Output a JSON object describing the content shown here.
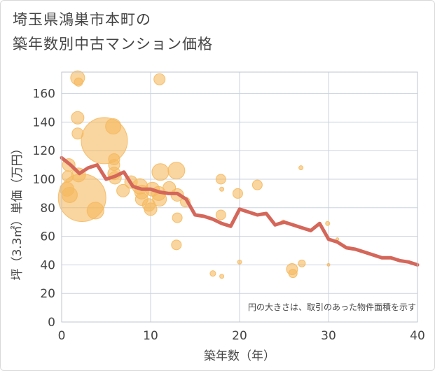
{
  "title_line1": "埼玉県鴻巣市本町の",
  "title_line2": "築年数別中古マンション価格",
  "chart_data": {
    "type": "scatter",
    "xlabel": "築年数（年）",
    "ylabel": "坪（3.3㎡）単価（万円）",
    "xlim": [
      0,
      40
    ],
    "ylim": [
      0,
      175
    ],
    "xticks": [
      0,
      10,
      20,
      30,
      40
    ],
    "yticks": [
      0,
      20,
      40,
      60,
      80,
      100,
      120,
      140,
      160
    ],
    "grid": true,
    "annotation": "円の大きさは、取引のあった物件面積を示す",
    "colors": {
      "bubble": "#f5b95f",
      "line": "#d4675a",
      "grid": "#c9d3df"
    },
    "bubbles": [
      {
        "x": 1.8,
        "y": 171,
        "s": 10
      },
      {
        "x": 1.9,
        "y": 168,
        "s": 6
      },
      {
        "x": 1.8,
        "y": 143,
        "s": 9
      },
      {
        "x": 1.8,
        "y": 132,
        "s": 8
      },
      {
        "x": 0.8,
        "y": 110,
        "s": 9
      },
      {
        "x": 0.7,
        "y": 102,
        "s": 8
      },
      {
        "x": 1.9,
        "y": 103,
        "s": 10
      },
      {
        "x": 0.6,
        "y": 93,
        "s": 10
      },
      {
        "x": 0.9,
        "y": 89,
        "s": 11
      },
      {
        "x": 2.3,
        "y": 87,
        "s": 34
      },
      {
        "x": 3.8,
        "y": 78,
        "s": 12
      },
      {
        "x": 4.8,
        "y": 127,
        "s": 33
      },
      {
        "x": 5.8,
        "y": 137,
        "s": 11
      },
      {
        "x": 5.9,
        "y": 114,
        "s": 8
      },
      {
        "x": 5.9,
        "y": 110,
        "s": 8
      },
      {
        "x": 5.9,
        "y": 104,
        "s": 9
      },
      {
        "x": 6.0,
        "y": 101,
        "s": 9
      },
      {
        "x": 6.9,
        "y": 92,
        "s": 9
      },
      {
        "x": 7.8,
        "y": 98,
        "s": 9
      },
      {
        "x": 8.8,
        "y": 95,
        "s": 11
      },
      {
        "x": 9.0,
        "y": 91,
        "s": 10
      },
      {
        "x": 9.0,
        "y": 86,
        "s": 9
      },
      {
        "x": 9.8,
        "y": 82,
        "s": 9
      },
      {
        "x": 10.0,
        "y": 79,
        "s": 9
      },
      {
        "x": 10.2,
        "y": 93,
        "s": 10
      },
      {
        "x": 10.9,
        "y": 90,
        "s": 10
      },
      {
        "x": 11.0,
        "y": 86,
        "s": 10
      },
      {
        "x": 11.1,
        "y": 105,
        "s": 12
      },
      {
        "x": 11.0,
        "y": 170,
        "s": 8
      },
      {
        "x": 12.1,
        "y": 94,
        "s": 9
      },
      {
        "x": 12.9,
        "y": 106,
        "s": 12
      },
      {
        "x": 13.0,
        "y": 89,
        "s": 9
      },
      {
        "x": 13.0,
        "y": 73,
        "s": 7
      },
      {
        "x": 12.9,
        "y": 54,
        "s": 7
      },
      {
        "x": 13.9,
        "y": 84,
        "s": 7
      },
      {
        "x": 17.0,
        "y": 34,
        "s": 4
      },
      {
        "x": 17.9,
        "y": 100,
        "s": 7
      },
      {
        "x": 18.0,
        "y": 93,
        "s": 3
      },
      {
        "x": 17.9,
        "y": 75,
        "s": 7
      },
      {
        "x": 18.0,
        "y": 32,
        "s": 3
      },
      {
        "x": 19.8,
        "y": 90,
        "s": 7
      },
      {
        "x": 20.0,
        "y": 42,
        "s": 3
      },
      {
        "x": 22.0,
        "y": 96,
        "s": 7
      },
      {
        "x": 24.9,
        "y": 70,
        "s": 3
      },
      {
        "x": 25.9,
        "y": 37,
        "s": 8
      },
      {
        "x": 26.0,
        "y": 34,
        "s": 6
      },
      {
        "x": 26.9,
        "y": 108,
        "s": 3
      },
      {
        "x": 27.0,
        "y": 41,
        "s": 5
      },
      {
        "x": 29.9,
        "y": 69,
        "s": 3
      },
      {
        "x": 30.0,
        "y": 40,
        "s": 2
      },
      {
        "x": 31.0,
        "y": 58,
        "s": 2
      }
    ],
    "trend": [
      [
        0,
        115
      ],
      [
        1,
        110
      ],
      [
        2,
        104
      ],
      [
        3,
        108
      ],
      [
        4,
        110
      ],
      [
        5,
        100
      ],
      [
        6,
        102
      ],
      [
        7,
        105
      ],
      [
        8,
        95
      ],
      [
        9,
        93
      ],
      [
        10,
        93
      ],
      [
        11,
        91
      ],
      [
        12,
        90
      ],
      [
        13,
        90
      ],
      [
        14,
        86
      ],
      [
        15,
        75
      ],
      [
        16,
        74
      ],
      [
        17,
        72
      ],
      [
        18,
        69
      ],
      [
        19,
        67
      ],
      [
        20,
        79
      ],
      [
        21,
        77
      ],
      [
        22,
        75
      ],
      [
        23,
        76
      ],
      [
        24,
        68
      ],
      [
        25,
        70
      ],
      [
        26,
        68
      ],
      [
        27,
        66
      ],
      [
        28,
        64
      ],
      [
        29,
        69
      ],
      [
        30,
        58
      ],
      [
        31,
        56
      ],
      [
        32,
        52
      ],
      [
        33,
        51
      ],
      [
        34,
        49
      ],
      [
        35,
        47
      ],
      [
        36,
        45
      ],
      [
        37,
        45
      ],
      [
        38,
        43
      ],
      [
        39,
        42
      ],
      [
        40,
        40
      ]
    ]
  }
}
